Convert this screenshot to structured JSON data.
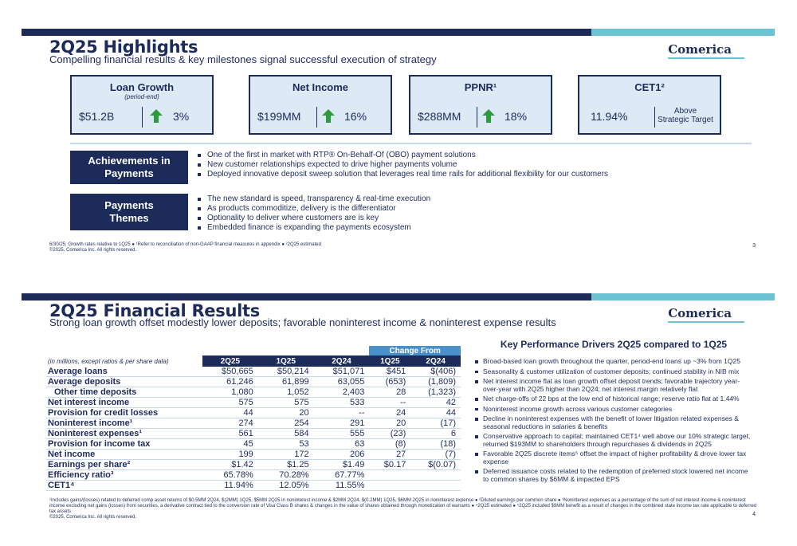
{
  "slide1": {
    "title": "2Q25 Highlights",
    "subtitle": "Compelling financial results & key milestones signal successful execution of strategy",
    "logo": "Comerica",
    "kpis": [
      {
        "title": "Loan Growth",
        "sub": "(period-end)",
        "value": "$51.2B",
        "change": "3%",
        "arrow": "up-arrow-icon"
      },
      {
        "title": "Net Income",
        "sub": "",
        "value": "$199MM",
        "change": "16%",
        "arrow": "up-arrow-icon"
      },
      {
        "title": "PPNR¹",
        "sub": "",
        "value": "$288MM",
        "change": "18%",
        "arrow": "up-arrow-icon"
      },
      {
        "title": "CET1²",
        "sub": "",
        "value": "11.94%",
        "note": "Above Strategic Target"
      }
    ],
    "achievements": {
      "label": "Achievements in Payments",
      "items": [
        "One of the first in market with RTP® On-Behalf-Of (OBO) payment solutions",
        "New customer relationships expected to drive higher payments volume",
        "Deployed innovative deposit sweep solution that leverages real time rails for additional flexibility for our customers"
      ]
    },
    "themes": {
      "label": "Payments Themes",
      "items": [
        "The new standard is speed, transparency & real-time execution",
        "As products commoditize, delivery is the differentiator",
        "Optionality to deliver where customers are is key",
        "Embedded finance is expanding the payments ecosystem"
      ]
    },
    "footnote1": "6/30/25; Growth rates relative to 1Q25 ● ¹Refer to reconciliation of non-GAAP financial measures in appendix ● ²2Q25 estimated",
    "footnote2": "©2025, Comerica Inc. All rights reserved.",
    "page": "3"
  },
  "slide2": {
    "title": "2Q25 Financial Results",
    "subtitle": "Strong loan growth offset modestly lower deposits; favorable noninterest income & noninterest expense results",
    "logo": "Comerica",
    "table": {
      "change_from": "Change From",
      "units_note": "(in millions, except ratios & per share data)",
      "columns": [
        "2Q25",
        "1Q25",
        "2Q24",
        "1Q25",
        "2Q24"
      ],
      "rows": [
        {
          "label": "Average loans",
          "indent": false,
          "values": [
            "$50,665",
            "$50,214",
            "$51,071",
            "$451",
            "$(406)"
          ]
        },
        {
          "label": "Average deposits",
          "indent": false,
          "values": [
            "61,246",
            "61,899",
            "63,055",
            "(653)",
            "(1,809)"
          ]
        },
        {
          "label": "Other time deposits",
          "indent": true,
          "values": [
            "1,080",
            "1,052",
            "2,403",
            "28",
            "(1,323)"
          ]
        },
        {
          "label": "Net interest income",
          "indent": false,
          "values": [
            "575",
            "575",
            "533",
            "--",
            "42"
          ]
        },
        {
          "label": "Provision for credit losses",
          "indent": false,
          "values": [
            "44",
            "20",
            "--",
            "24",
            "44"
          ]
        },
        {
          "label": "Noninterest income¹",
          "indent": false,
          "values": [
            "274",
            "254",
            "291",
            "20",
            "(17)"
          ]
        },
        {
          "label": "Noninterest expenses¹",
          "indent": false,
          "values": [
            "561",
            "584",
            "555",
            "(23)",
            "6"
          ]
        },
        {
          "label": "Provision for income tax",
          "indent": false,
          "values": [
            "45",
            "53",
            "63",
            "(8)",
            "(18)"
          ]
        },
        {
          "label": "Net income",
          "indent": false,
          "values": [
            "199",
            "172",
            "206",
            "27",
            "(7)"
          ]
        },
        {
          "label": "Earnings per share²",
          "indent": false,
          "values": [
            "$1.42",
            "$1.25",
            "$1.49",
            "$0.17",
            "$(0.07)"
          ]
        },
        {
          "label": "Efficiency ratio³",
          "indent": false,
          "values": [
            "65.78%",
            "70.28%",
            "67.77%",
            "",
            ""
          ]
        },
        {
          "label": "CET1⁴",
          "indent": false,
          "values": [
            "11.94%",
            "12.05%",
            "11.55%",
            "",
            ""
          ]
        }
      ]
    },
    "drivers": {
      "title": "Key Performance Drivers 2Q25 compared to 1Q25",
      "items": [
        "Broad-based loan growth throughout the quarter, period-end loans up ~3% from 1Q25",
        "Seasonality & customer utilization of customer deposits; continued stability in NIB mix",
        "Net interest income flat as loan growth offset deposit trends; favorable trajectory year-over-year with 2Q25 higher than 2Q24; net interest margin relatively flat",
        "Net charge-offs of 22 bps at the low end of historical range; reserve ratio flat at 1.44%",
        "Noninterest income growth across various customer categories",
        "Decline in noninterest expenses with the benefit of lower litigation related expenses & seasonal reductions in salaries & benefits",
        "Conservative approach to capital; maintained CET1⁴ well above our 10% strategic target, returned $193MM to shareholders through repurchases & dividends in 2Q25",
        "Favorable 2Q25 discrete items⁵ offset the impact of higher profitability & drove lower tax expense",
        "Deferred issuance costs related to the redemption of preferred stock lowered net income to common shares by $6MM & impacted EPS"
      ]
    },
    "footnote1": "¹Includes gains/(losses) related to deferred comp asset returns of $0.5MM 2Q24, $(2MM) 1Q25, $5MM 2Q25 in noninterest income & $2MM 2Q24, $(0.2MM) 1Q25, $6MM 2Q25 in noninterest expense ● ²Diluted earnings per common share ● ³Noninterest expenses as a percentage of the sum of net interest income & noninterest income excluding net gains (losses) from securities, a derivative contract tied to the conversion rate of Visa Class B shares & changes in the value of shares obtained through monetization of warrants ● ⁴2Q25 estimated ● ⁵2Q25 included $9MM benefit as a result of changes in the combined state income tax rate applicable to deferred tax assets",
    "footnote2": "©2025, Comerica Inc. All rights reserved.",
    "page": "4"
  }
}
